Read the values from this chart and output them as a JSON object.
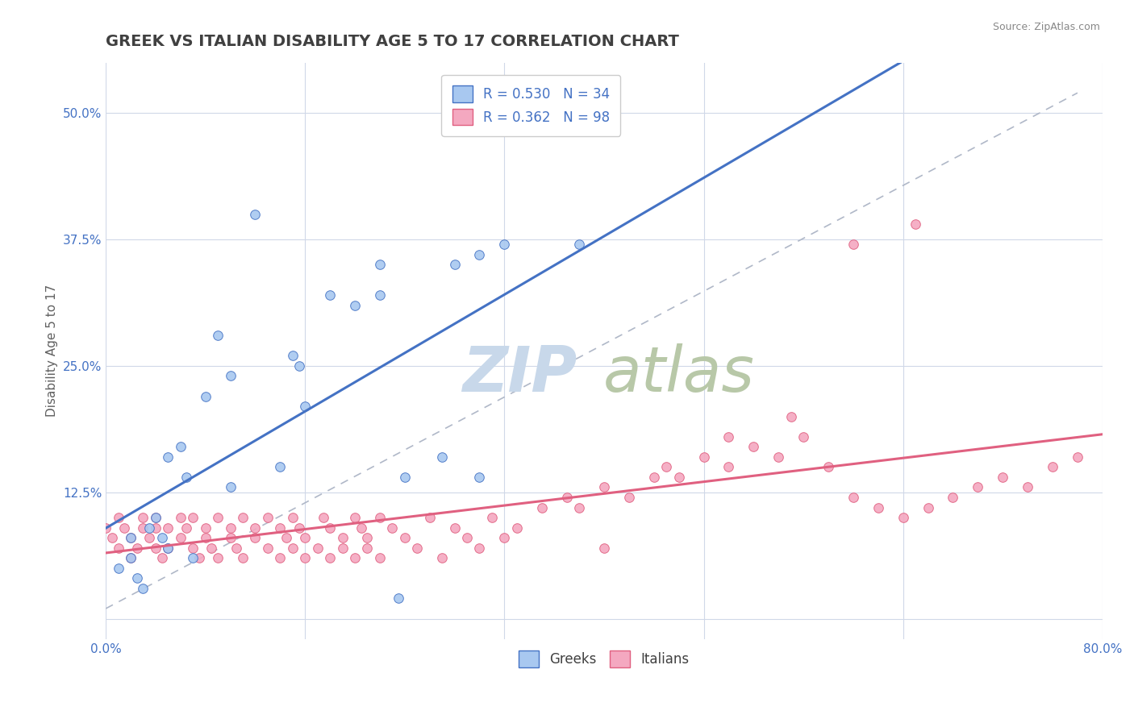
{
  "title": "GREEK VS ITALIAN DISABILITY AGE 5 TO 17 CORRELATION CHART",
  "source_text": "Source: ZipAtlas.com",
  "ylabel_text": "Disability Age 5 to 17",
  "xlim": [
    0.0,
    0.8
  ],
  "ylim": [
    -0.02,
    0.55
  ],
  "xtick_vals": [
    0.0,
    0.16,
    0.32,
    0.48,
    0.64,
    0.8
  ],
  "xtick_labels": [
    "0.0%",
    "",
    "",
    "",
    "",
    "80.0%"
  ],
  "ytick_vals": [
    0.0,
    0.125,
    0.25,
    0.375,
    0.5
  ],
  "ytick_labels": [
    "",
    "12.5%",
    "25.0%",
    "37.5%",
    "50.0%"
  ],
  "greek_color": "#a8c8f0",
  "greek_line_color": "#4472c4",
  "italian_color": "#f4a8c0",
  "italian_line_color": "#e06080",
  "legend_blue_text_color": "#4472c4",
  "greek_R": 0.53,
  "greek_N": 34,
  "italian_R": 0.362,
  "italian_N": 98,
  "greek_scatter_x": [
    0.01,
    0.02,
    0.02,
    0.025,
    0.03,
    0.035,
    0.04,
    0.045,
    0.05,
    0.05,
    0.06,
    0.065,
    0.07,
    0.08,
    0.09,
    0.1,
    0.1,
    0.12,
    0.14,
    0.15,
    0.155,
    0.16,
    0.18,
    0.2,
    0.22,
    0.22,
    0.235,
    0.24,
    0.27,
    0.28,
    0.3,
    0.3,
    0.32,
    0.38
  ],
  "greek_scatter_y": [
    0.05,
    0.08,
    0.06,
    0.04,
    0.03,
    0.09,
    0.1,
    0.08,
    0.07,
    0.16,
    0.17,
    0.14,
    0.06,
    0.22,
    0.28,
    0.13,
    0.24,
    0.4,
    0.15,
    0.26,
    0.25,
    0.21,
    0.32,
    0.31,
    0.32,
    0.35,
    0.02,
    0.14,
    0.16,
    0.35,
    0.36,
    0.14,
    0.37,
    0.37
  ],
  "italian_scatter_x": [
    0.0,
    0.005,
    0.01,
    0.01,
    0.015,
    0.02,
    0.02,
    0.025,
    0.03,
    0.03,
    0.035,
    0.04,
    0.04,
    0.04,
    0.045,
    0.05,
    0.05,
    0.06,
    0.06,
    0.065,
    0.07,
    0.07,
    0.075,
    0.08,
    0.08,
    0.085,
    0.09,
    0.09,
    0.1,
    0.1,
    0.105,
    0.11,
    0.11,
    0.12,
    0.12,
    0.13,
    0.13,
    0.14,
    0.14,
    0.145,
    0.15,
    0.15,
    0.155,
    0.16,
    0.16,
    0.17,
    0.175,
    0.18,
    0.18,
    0.19,
    0.19,
    0.2,
    0.2,
    0.205,
    0.21,
    0.21,
    0.22,
    0.22,
    0.23,
    0.24,
    0.25,
    0.26,
    0.27,
    0.28,
    0.29,
    0.3,
    0.31,
    0.32,
    0.33,
    0.35,
    0.37,
    0.38,
    0.4,
    0.42,
    0.44,
    0.46,
    0.48,
    0.5,
    0.52,
    0.54,
    0.56,
    0.58,
    0.6,
    0.62,
    0.64,
    0.66,
    0.68,
    0.7,
    0.72,
    0.74,
    0.76,
    0.78,
    0.6,
    0.65,
    0.55,
    0.5,
    0.45,
    0.4
  ],
  "italian_scatter_y": [
    0.09,
    0.08,
    0.07,
    0.1,
    0.09,
    0.06,
    0.08,
    0.07,
    0.09,
    0.1,
    0.08,
    0.07,
    0.09,
    0.1,
    0.06,
    0.07,
    0.09,
    0.08,
    0.1,
    0.09,
    0.07,
    0.1,
    0.06,
    0.08,
    0.09,
    0.07,
    0.06,
    0.1,
    0.08,
    0.09,
    0.07,
    0.1,
    0.06,
    0.08,
    0.09,
    0.07,
    0.1,
    0.06,
    0.09,
    0.08,
    0.07,
    0.1,
    0.09,
    0.06,
    0.08,
    0.07,
    0.1,
    0.06,
    0.09,
    0.08,
    0.07,
    0.1,
    0.06,
    0.09,
    0.08,
    0.07,
    0.1,
    0.06,
    0.09,
    0.08,
    0.07,
    0.1,
    0.06,
    0.09,
    0.08,
    0.07,
    0.1,
    0.08,
    0.09,
    0.11,
    0.12,
    0.11,
    0.13,
    0.12,
    0.14,
    0.14,
    0.16,
    0.15,
    0.17,
    0.16,
    0.18,
    0.15,
    0.12,
    0.11,
    0.1,
    0.11,
    0.12,
    0.13,
    0.14,
    0.13,
    0.15,
    0.16,
    0.37,
    0.39,
    0.2,
    0.18,
    0.15,
    0.07
  ],
  "title_color": "#404040",
  "title_fontsize": 14,
  "axis_label_color": "#606060",
  "tick_label_color": "#4472c4",
  "grid_color": "#d0d8e8",
  "background_color": "#ffffff"
}
